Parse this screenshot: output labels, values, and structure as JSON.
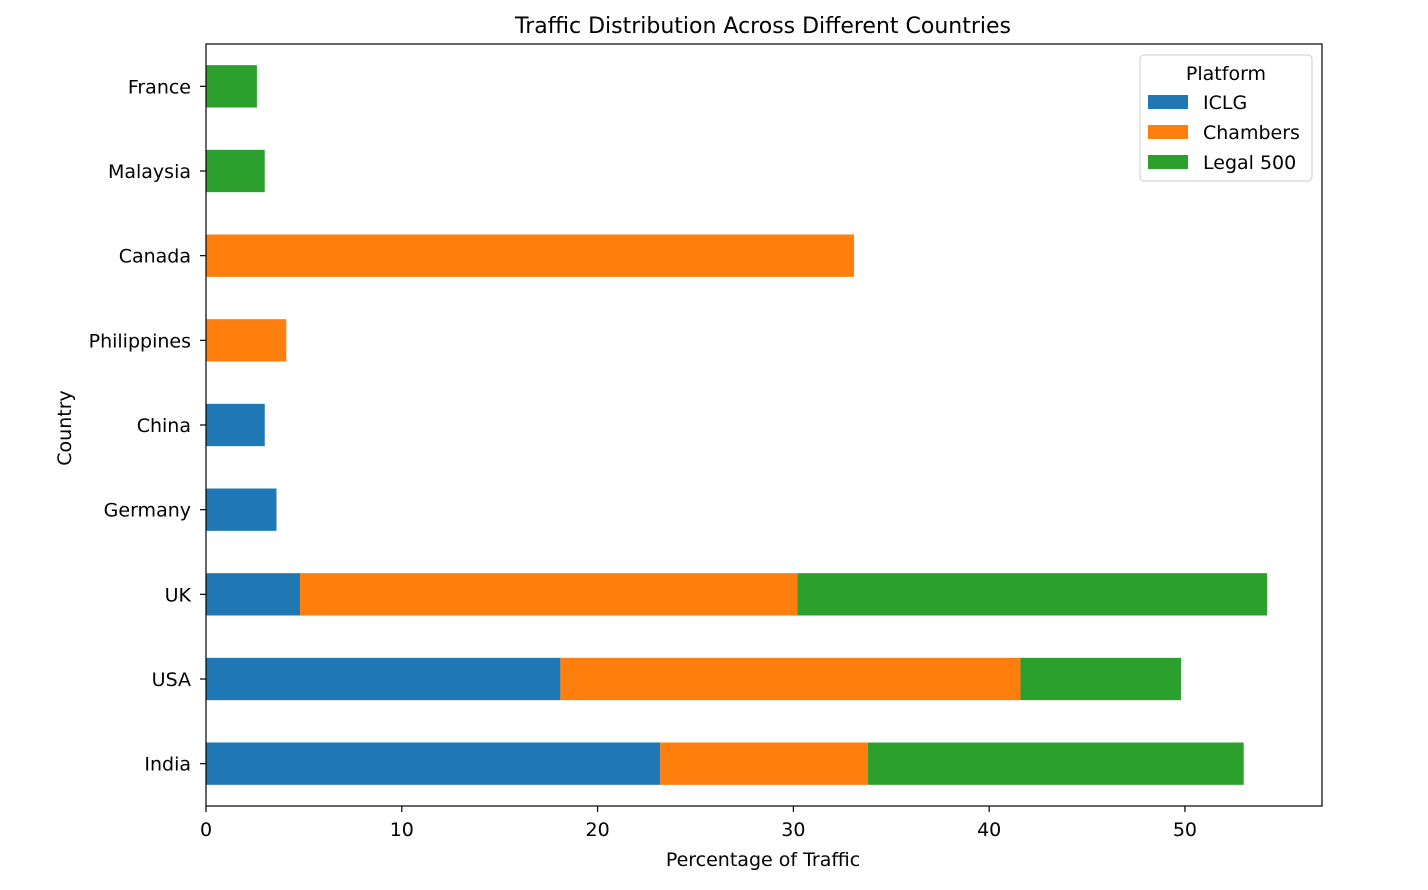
{
  "chart_data": {
    "type": "bar",
    "orientation": "horizontal",
    "stacked": true,
    "title": "Traffic Distribution Across Different Countries",
    "xlabel": "Percentage of Traffic",
    "ylabel": "Country",
    "categories": [
      "India",
      "USA",
      "UK",
      "Germany",
      "China",
      "Philippines",
      "Canada",
      "Malaysia",
      "France"
    ],
    "series": [
      {
        "name": "ICLG",
        "color": "#1f77b4",
        "values": [
          23.2,
          18.1,
          4.8,
          3.6,
          3.0,
          0,
          0,
          0,
          0
        ]
      },
      {
        "name": "Chambers",
        "color": "#ff7f0e",
        "values": [
          10.6,
          23.5,
          25.4,
          0,
          0,
          4.1,
          33.1,
          0,
          0
        ]
      },
      {
        "name": "Legal 500",
        "color": "#2ca02c",
        "values": [
          19.2,
          8.2,
          24.0,
          0,
          0,
          0,
          0,
          3.0,
          2.6
        ]
      }
    ],
    "xlim": [
      0,
      57
    ],
    "xticks": [
      0,
      10,
      20,
      30,
      40,
      50
    ],
    "grid": false,
    "legend": {
      "title": "Platform",
      "position": "top-right"
    }
  }
}
